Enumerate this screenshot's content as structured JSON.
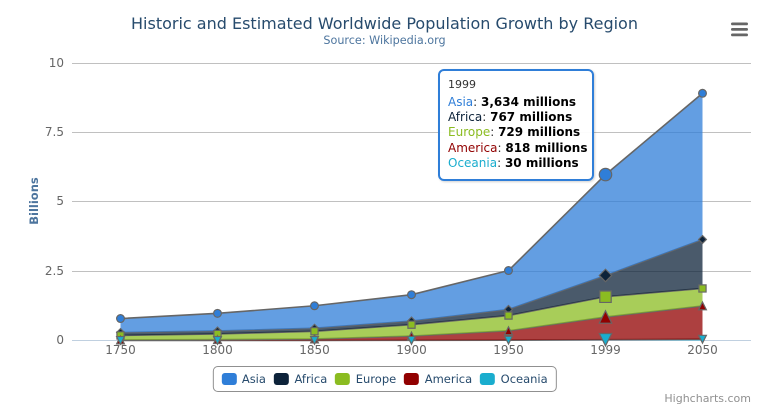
{
  "header": {
    "title": "Historic and Estimated Worldwide Population Growth by Region",
    "subtitle": "Source: Wikipedia.org"
  },
  "credits": "Highcharts.com",
  "chart_data": {
    "type": "area",
    "stacking": "normal",
    "title": "Historic and Estimated Worldwide Population Growth by Region",
    "subtitle": "Source: Wikipedia.org",
    "categories": [
      "1750",
      "1800",
      "1850",
      "1900",
      "1950",
      "1999",
      "2050"
    ],
    "series": [
      {
        "name": "Asia",
        "color": "#2f7ed8",
        "marker": "circle",
        "values": [
          502,
          635,
          809,
          947,
          1402,
          3634,
          5268
        ]
      },
      {
        "name": "Africa",
        "color": "#0d233a",
        "marker": "diamond",
        "values": [
          106,
          107,
          111,
          133,
          221,
          767,
          1766
        ]
      },
      {
        "name": "Europe",
        "color": "#8bbc21",
        "marker": "square",
        "values": [
          163,
          203,
          276,
          408,
          547,
          729,
          628
        ]
      },
      {
        "name": "America",
        "color": "#910000",
        "marker": "triangle",
        "values": [
          18,
          31,
          54,
          156,
          339,
          818,
          1201
        ]
      },
      {
        "name": "Oceania",
        "color": "#1aadce",
        "marker": "triangle-down",
        "values": [
          2,
          2,
          2,
          6,
          13,
          30,
          46
        ]
      }
    ],
    "stack_order_bottom_to_top": [
      "Oceania",
      "America",
      "Europe",
      "Africa",
      "Asia"
    ],
    "xlabel": "",
    "ylabel": "Billions",
    "unit": "millions",
    "unit_divisor_to_billions": 1000,
    "ylim": [
      0,
      10
    ],
    "yticks": [
      0,
      2.5,
      5,
      7.5,
      10
    ],
    "grid": true,
    "fill_opacity": 0.75,
    "line_color": "#666666",
    "grid_line_color": "#c0c0c0",
    "axis_line_color": "#c0d0e0",
    "legend_position": "bottom",
    "hover_index": 5
  },
  "tooltip": {
    "header": "1999",
    "rows": [
      {
        "name": "Asia",
        "color": "#2f7ed8",
        "value": "3,634",
        "suffix": " millions"
      },
      {
        "name": "Africa",
        "color": "#0d233a",
        "value": "767",
        "suffix": " millions"
      },
      {
        "name": "Europe",
        "color": "#8bbc21",
        "value": "729",
        "suffix": " millions"
      },
      {
        "name": "America",
        "color": "#910000",
        "value": "818",
        "suffix": " millions"
      },
      {
        "name": "Oceania",
        "color": "#1aadce",
        "value": "30",
        "suffix": " millions"
      }
    ]
  },
  "export_menu": {
    "icon": "hamburger-menu-icon",
    "color": "#666666"
  }
}
